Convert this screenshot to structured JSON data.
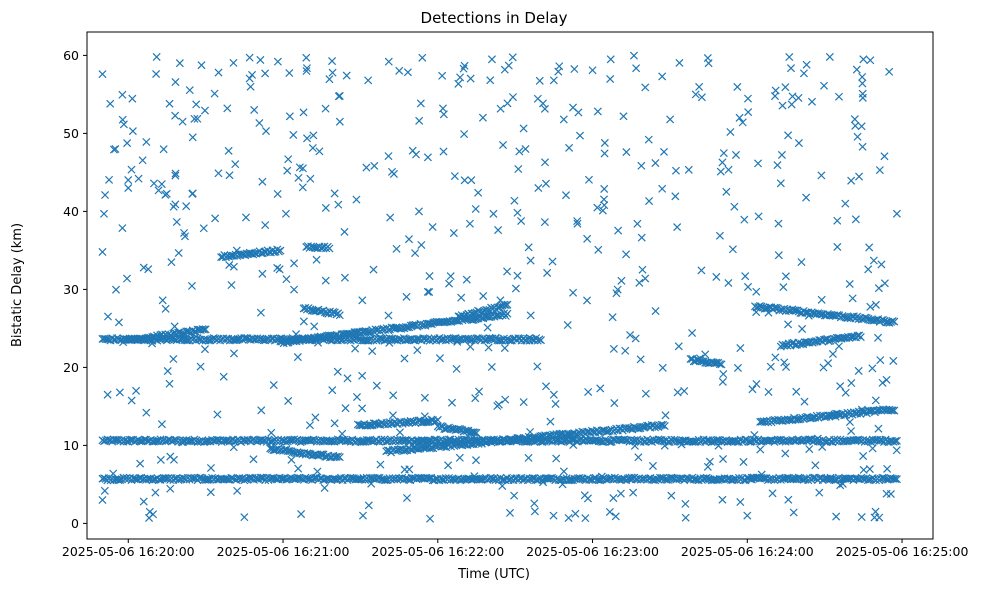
{
  "chart_data": {
    "type": "scatter",
    "title": "Detections in Delay",
    "xlabel": "Time (UTC)",
    "ylabel": "Bistatic Delay (km)",
    "marker": "x",
    "color": "#1f77b4",
    "grid": false,
    "legend": "none",
    "xlim": [
      "2025-05-06 16:19:44",
      "2025-05-06 16:25:12"
    ],
    "ylim": [
      -2,
      63
    ],
    "x_ticks": [
      "2025-05-06 16:20:00",
      "2025-05-06 16:21:00",
      "2025-05-06 16:22:00",
      "2025-05-06 16:23:00",
      "2025-05-06 16:24:00",
      "2025-05-06 16:25:00"
    ],
    "y_ticks": [
      "0",
      "10",
      "20",
      "30",
      "40",
      "50",
      "60"
    ],
    "tracks": [
      {
        "start": "2025-05-06 16:19:50",
        "end": "2025-05-06 16:24:58",
        "delay_start": 10.6,
        "delay_end": 10.6
      },
      {
        "start": "2025-05-06 16:19:50",
        "end": "2025-05-06 16:24:58",
        "delay_start": 5.7,
        "delay_end": 5.7
      },
      {
        "start": "2025-05-06 16:19:50",
        "end": "2025-05-06 16:22:40",
        "delay_start": 23.6,
        "delay_end": 23.6
      },
      {
        "start": "2025-05-06 16:19:58",
        "end": "2025-05-06 16:20:30",
        "delay_start": 23.4,
        "delay_end": 24.8
      },
      {
        "start": "2025-05-06 16:20:36",
        "end": "2025-05-06 16:20:59",
        "delay_start": 34.2,
        "delay_end": 35.0
      },
      {
        "start": "2025-05-06 16:20:59",
        "end": "2025-05-06 16:22:27",
        "delay_start": 23.2,
        "delay_end": 26.8
      },
      {
        "start": "2025-05-06 16:21:09",
        "end": "2025-05-06 16:21:18",
        "delay_start": 35.5,
        "delay_end": 35.3
      },
      {
        "start": "2025-05-06 16:21:08",
        "end": "2025-05-06 16:21:22",
        "delay_start": 27.6,
        "delay_end": 26.8
      },
      {
        "start": "2025-05-06 16:21:29",
        "end": "2025-05-06 16:22:00",
        "delay_start": 12.6,
        "delay_end": 13.2
      },
      {
        "start": "2025-05-06 16:21:40",
        "end": "2025-05-06 16:22:24",
        "delay_start": 9.2,
        "delay_end": 10.6
      },
      {
        "start": "2025-05-06 16:22:24",
        "end": "2025-05-06 16:23:28",
        "delay_start": 10.6,
        "delay_end": 12.6
      },
      {
        "start": "2025-05-06 16:20:55",
        "end": "2025-05-06 16:21:22",
        "delay_start": 9.6,
        "delay_end": 8.4
      },
      {
        "start": "2025-05-06 16:22:00",
        "end": "2025-05-06 16:22:15",
        "delay_start": 12.4,
        "delay_end": 11.6
      },
      {
        "start": "2025-05-06 16:23:38",
        "end": "2025-05-06 16:23:50",
        "delay_start": 21.0,
        "delay_end": 20.4
      },
      {
        "start": "2025-05-06 16:24:03",
        "end": "2025-05-06 16:24:57",
        "delay_start": 27.8,
        "delay_end": 25.8
      },
      {
        "start": "2025-05-06 16:24:13",
        "end": "2025-05-06 16:24:44",
        "delay_start": 22.8,
        "delay_end": 24.0
      },
      {
        "start": "2025-05-06 16:24:05",
        "end": "2025-05-06 16:24:57",
        "delay_start": 13.0,
        "delay_end": 14.6
      },
      {
        "start": "2025-05-06 16:22:08",
        "end": "2025-05-06 16:22:27",
        "delay_start": 26.5,
        "delay_end": 28.0
      }
    ],
    "scattered_points": [
      [
        "2025-05-06 16:19:50",
        57.6
      ],
      [
        "2025-05-06 16:19:53",
        53.8
      ],
      [
        "2025-05-06 16:19:55",
        48.0
      ],
      [
        "2025-05-06 16:20:07",
        48.9
      ],
      [
        "2025-05-06 16:20:11",
        59.8
      ],
      [
        "2025-05-06 16:20:16",
        53.8
      ],
      [
        "2025-05-06 16:20:20",
        59.0
      ],
      [
        "2025-05-06 16:20:25",
        49.5
      ],
      [
        "2025-05-06 16:20:35",
        57.8
      ],
      [
        "2025-05-06 16:20:48",
        57.5
      ],
      [
        "2025-05-06 16:20:58",
        59.2
      ],
      [
        "2025-05-06 16:21:04",
        49.8
      ],
      [
        "2025-05-06 16:21:09",
        59.7
      ],
      [
        "2025-05-06 16:21:22",
        54.8
      ],
      [
        "2025-05-06 16:21:33",
        56.8
      ],
      [
        "2025-05-06 16:21:41",
        59.2
      ],
      [
        "2025-05-06 16:21:54",
        59.7
      ],
      [
        "2025-05-06 16:22:02",
        53.2
      ],
      [
        "2025-05-06 16:22:10",
        58.3
      ],
      [
        "2025-05-06 16:22:21",
        59.5
      ],
      [
        "2025-05-06 16:22:34",
        48.0
      ],
      [
        "2025-05-06 16:22:45",
        56.8
      ],
      [
        "2025-05-06 16:23:00",
        58.1
      ],
      [
        "2025-05-06 16:23:12",
        52.2
      ],
      [
        "2025-05-06 16:23:27",
        57.3
      ],
      [
        "2025-05-06 16:23:40",
        55.0
      ],
      [
        "2025-05-06 16:23:45",
        59.0
      ],
      [
        "2025-05-06 16:23:57",
        52.0
      ],
      [
        "2025-05-06 16:24:11",
        55.5
      ],
      [
        "2025-05-06 16:24:23",
        58.8
      ],
      [
        "2025-05-06 16:24:32",
        59.8
      ],
      [
        "2025-05-06 16:24:45",
        59.5
      ],
      [
        "2025-05-06 16:24:55",
        57.9
      ],
      [
        "2025-05-06 16:19:51",
        42.1
      ],
      [
        "2025-05-06 16:20:04",
        44.2
      ],
      [
        "2025-05-06 16:20:13",
        43.5
      ],
      [
        "2025-05-06 16:20:25",
        42.3
      ],
      [
        "2025-05-06 16:20:52",
        43.8
      ],
      [
        "2025-05-06 16:21:06",
        44.3
      ],
      [
        "2025-05-06 16:21:20",
        42.3
      ],
      [
        "2025-05-06 16:21:43",
        44.8
      ],
      [
        "2025-05-06 16:21:58",
        38.0
      ],
      [
        "2025-05-06 16:22:13",
        44.0
      ],
      [
        "2025-05-06 16:22:39",
        43.0
      ],
      [
        "2025-05-06 16:23:04",
        40.1
      ],
      [
        "2025-05-06 16:23:27",
        42.9
      ],
      [
        "2025-05-06 16:23:55",
        40.6
      ],
      [
        "2025-05-06 16:24:13",
        43.6
      ],
      [
        "2025-05-06 16:24:38",
        41.0
      ],
      [
        "2025-05-06 16:24:58",
        39.7
      ],
      [
        "2025-05-06 16:19:50",
        34.8
      ],
      [
        "2025-05-06 16:20:06",
        32.8
      ],
      [
        "2025-05-06 16:20:22",
        36.8
      ],
      [
        "2025-05-06 16:20:52",
        32.0
      ],
      [
        "2025-05-06 16:21:13",
        33.8
      ],
      [
        "2025-05-06 16:21:24",
        31.5
      ],
      [
        "2025-05-06 16:21:44",
        35.2
      ],
      [
        "2025-05-06 16:22:05",
        31.7
      ],
      [
        "2025-05-06 16:22:36",
        33.7
      ],
      [
        "2025-05-06 16:23:13",
        34.5
      ],
      [
        "2025-05-06 16:23:48",
        31.6
      ],
      [
        "2025-05-06 16:24:21",
        33.5
      ],
      [
        "2025-05-06 16:24:52",
        33.2
      ],
      [
        "2025-05-06 16:19:52",
        16.5
      ],
      [
        "2025-05-06 16:20:07",
        14.2
      ],
      [
        "2025-05-06 16:20:16",
        17.9
      ],
      [
        "2025-05-06 16:20:37",
        18.8
      ],
      [
        "2025-05-06 16:21:02",
        15.7
      ],
      [
        "2025-05-06 16:21:25",
        18.6
      ],
      [
        "2025-05-06 16:21:55",
        16.1
      ],
      [
        "2025-05-06 16:22:16",
        16.9
      ],
      [
        "2025-05-06 16:22:45",
        16.5
      ],
      [
        "2025-05-06 16:23:03",
        17.3
      ],
      [
        "2025-05-06 16:23:33",
        16.8
      ],
      [
        "2025-05-06 16:24:02",
        17.2
      ],
      [
        "2025-05-06 16:24:36",
        17.6
      ],
      [
        "2025-05-06 16:24:54",
        18.4
      ],
      [
        "2025-05-06 16:19:50",
        3.0
      ],
      [
        "2025-05-06 16:20:06",
        2.8
      ],
      [
        "2025-05-06 16:20:32",
        4.0
      ],
      [
        "2025-05-06 16:20:45",
        0.8
      ],
      [
        "2025-05-06 16:21:07",
        1.2
      ],
      [
        "2025-05-06 16:21:31",
        1.0
      ],
      [
        "2025-05-06 16:21:57",
        0.6
      ],
      [
        "2025-05-06 16:22:25",
        4.8
      ],
      [
        "2025-05-06 16:22:57",
        3.6
      ],
      [
        "2025-05-06 16:23:09",
        0.9
      ],
      [
        "2025-05-06 16:23:36",
        2.5
      ],
      [
        "2025-05-06 16:24:00",
        1.0
      ],
      [
        "2025-05-06 16:24:18",
        1.4
      ],
      [
        "2025-05-06 16:24:36",
        4.9
      ],
      [
        "2025-05-06 16:24:54",
        3.8
      ]
    ]
  }
}
